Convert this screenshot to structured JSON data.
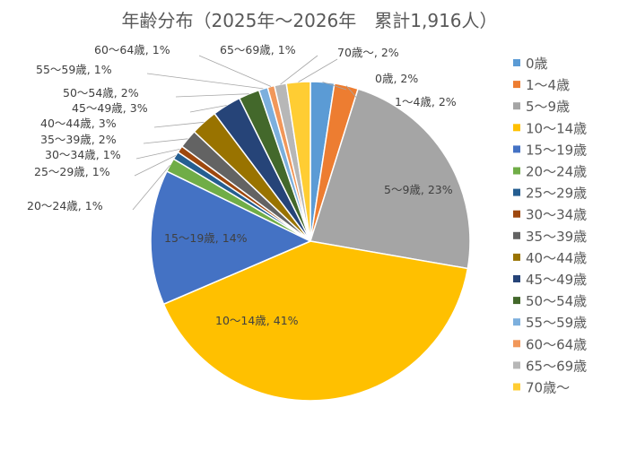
{
  "chart_data": {
    "type": "pie",
    "title": "年齢分布（2025年～2026年　累計1,916人）",
    "categories": [
      "0歳",
      "1～4歳",
      "5～9歳",
      "10～14歳",
      "15～19歳",
      "20～24歳",
      "25～29歳",
      "30～34歳",
      "35～39歳",
      "40～44歳",
      "45～49歳",
      "50～54歳",
      "55～59歳",
      "60～64歳",
      "65～69歳",
      "70歳～"
    ],
    "values": [
      2.4,
      2.4,
      22.8,
      40.6,
      13.6,
      1.4,
      0.8,
      0.7,
      1.9,
      2.7,
      2.9,
      2.1,
      0.9,
      0.7,
      1.2,
      2.4
    ],
    "data_labels": [
      "0歳, 2%",
      "1～4歳, 2%",
      "5～9歳, 23%",
      "10～14歳, 41%",
      "15～19歳, 14%",
      "20～24歳, 1%",
      "25～29歳, 1%",
      "30～34歳, 1%",
      "35～39歳, 2%",
      "40～44歳, 3%",
      "45～49歳, 3%",
      "50～54歳, 2%",
      "55～59歳, 1%",
      "60～64歳, 1%",
      "65～69歳, 1%",
      "70歳～, 2%"
    ],
    "colors": [
      "#5b9bd5",
      "#ed7d31",
      "#a5a5a5",
      "#ffc000",
      "#4472c4",
      "#70ad47",
      "#255e91",
      "#9e480e",
      "#636363",
      "#997300",
      "#264478",
      "#43682b",
      "#7cafdd",
      "#f1975a",
      "#b7b7b7",
      "#ffcd33"
    ],
    "legend_position": "right"
  }
}
